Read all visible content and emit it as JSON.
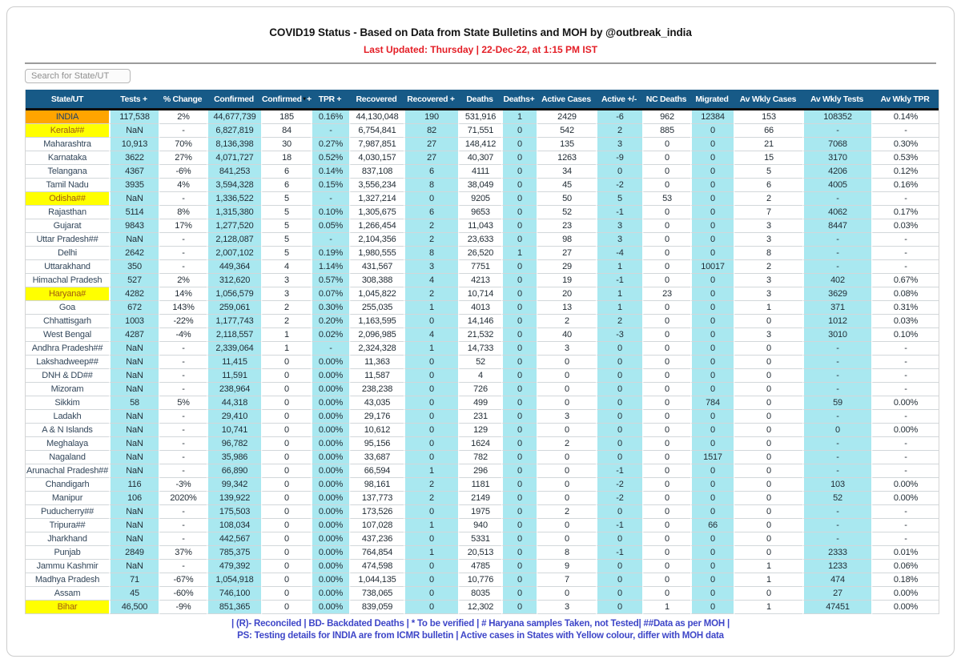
{
  "header": {
    "title": "COVID19 Status - Based on Data from State Bulletins and MOH by @outbreak_india",
    "last_updated": "Last Updated: Thursday | 22-Dec-22, at 1:15 PM IST"
  },
  "search": {
    "placeholder": "Search for State/UT"
  },
  "colors": {
    "header_bg": "#175a87",
    "cyan_column": "#a9e8f0",
    "india_row_orange": "#ffa500",
    "highlight_yellow": "#ffff00",
    "last_updated_red": "#e41e26",
    "footer_blue": "#3e46c8"
  },
  "table": {
    "columns": [
      {
        "label": "State/UT",
        "cyan": false
      },
      {
        "label": "Tests +",
        "cyan": true
      },
      {
        "label": "% Change",
        "cyan": false
      },
      {
        "label": "Confirmed",
        "cyan": true
      },
      {
        "label": "Confirmed",
        "plus": "+",
        "sorted": true,
        "cyan": false
      },
      {
        "label": "TPR +",
        "cyan": true
      },
      {
        "label": "Recovered",
        "cyan": false
      },
      {
        "label": "Recovered +",
        "cyan": true
      },
      {
        "label": "Deaths",
        "cyan": false
      },
      {
        "label": "Deaths+",
        "cyan": true
      },
      {
        "label": "Active Cases",
        "cyan": false
      },
      {
        "label": "Active +/-",
        "cyan": true
      },
      {
        "label": "NC Deaths",
        "cyan": false
      },
      {
        "label": "Migrated",
        "cyan": true
      },
      {
        "label": "Av Wkly Cases",
        "cyan": false
      },
      {
        "label": "Av Wkly Tests",
        "cyan": true
      },
      {
        "label": "Av Wkly TPR",
        "cyan": false
      }
    ],
    "rows": [
      {
        "state": "INDIA",
        "style": "orange",
        "cells": [
          "117,538",
          "2%",
          "44,677,739",
          "185",
          "0.16%",
          "44,130,048",
          "190",
          "531,916",
          "1",
          "2429",
          "-6",
          "962",
          "12384",
          "153",
          "108352",
          "0.14%"
        ]
      },
      {
        "state": "Kerala##",
        "style": "yellow",
        "cells": [
          "NaN",
          "-",
          "6,827,819",
          "84",
          "-",
          "6,754,841",
          "82",
          "71,551",
          "0",
          "542",
          "2",
          "885",
          "0",
          "66",
          "-",
          "-"
        ]
      },
      {
        "state": "Maharashtra",
        "style": null,
        "cells": [
          "10,913",
          "70%",
          "8,136,398",
          "30",
          "0.27%",
          "7,987,851",
          "27",
          "148,412",
          "0",
          "135",
          "3",
          "0",
          "0",
          "21",
          "7068",
          "0.30%"
        ]
      },
      {
        "state": "Karnataka",
        "style": null,
        "cells": [
          "3622",
          "27%",
          "4,071,727",
          "18",
          "0.52%",
          "4,030,157",
          "27",
          "40,307",
          "0",
          "1263",
          "-9",
          "0",
          "0",
          "15",
          "3170",
          "0.53%"
        ]
      },
      {
        "state": "Telangana",
        "style": null,
        "cells": [
          "4367",
          "-6%",
          "841,253",
          "6",
          "0.14%",
          "837,108",
          "6",
          "4111",
          "0",
          "34",
          "0",
          "0",
          "0",
          "5",
          "4206",
          "0.12%"
        ]
      },
      {
        "state": "Tamil Nadu",
        "style": null,
        "cells": [
          "3935",
          "4%",
          "3,594,328",
          "6",
          "0.15%",
          "3,556,234",
          "8",
          "38,049",
          "0",
          "45",
          "-2",
          "0",
          "0",
          "6",
          "4005",
          "0.16%"
        ]
      },
      {
        "state": "Odisha##",
        "style": "yellow",
        "cells": [
          "NaN",
          "-",
          "1,336,522",
          "5",
          "-",
          "1,327,214",
          "0",
          "9205",
          "0",
          "50",
          "5",
          "53",
          "0",
          "2",
          "-",
          "-"
        ]
      },
      {
        "state": "Rajasthan",
        "style": null,
        "cells": [
          "5114",
          "8%",
          "1,315,380",
          "5",
          "0.10%",
          "1,305,675",
          "6",
          "9653",
          "0",
          "52",
          "-1",
          "0",
          "0",
          "7",
          "4062",
          "0.17%"
        ]
      },
      {
        "state": "Gujarat",
        "style": null,
        "cells": [
          "9843",
          "17%",
          "1,277,520",
          "5",
          "0.05%",
          "1,266,454",
          "2",
          "11,043",
          "0",
          "23",
          "3",
          "0",
          "0",
          "3",
          "8447",
          "0.03%"
        ]
      },
      {
        "state": "Uttar Pradesh##",
        "style": null,
        "cells": [
          "NaN",
          "-",
          "2,128,087",
          "5",
          "-",
          "2,104,356",
          "2",
          "23,633",
          "0",
          "98",
          "3",
          "0",
          "0",
          "3",
          "-",
          "-"
        ]
      },
      {
        "state": "Delhi",
        "style": null,
        "cells": [
          "2642",
          "-",
          "2,007,102",
          "5",
          "0.19%",
          "1,980,555",
          "8",
          "26,520",
          "1",
          "27",
          "-4",
          "0",
          "0",
          "8",
          "-",
          "-"
        ]
      },
      {
        "state": "Uttarakhand",
        "style": null,
        "cells": [
          "350",
          "-",
          "449,364",
          "4",
          "1.14%",
          "431,567",
          "3",
          "7751",
          "0",
          "29",
          "1",
          "0",
          "10017",
          "2",
          "-",
          "-"
        ]
      },
      {
        "state": "Himachal Pradesh",
        "style": null,
        "cells": [
          "527",
          "2%",
          "312,620",
          "3",
          "0.57%",
          "308,388",
          "4",
          "4213",
          "0",
          "19",
          "-1",
          "0",
          "0",
          "3",
          "402",
          "0.67%"
        ]
      },
      {
        "state": "Haryana#",
        "style": "yellow",
        "cells": [
          "4282",
          "14%",
          "1,056,579",
          "3",
          "0.07%",
          "1,045,822",
          "2",
          "10,714",
          "0",
          "20",
          "1",
          "23",
          "0",
          "3",
          "3629",
          "0.08%"
        ]
      },
      {
        "state": "Goa",
        "style": null,
        "cells": [
          "672",
          "143%",
          "259,061",
          "2",
          "0.30%",
          "255,035",
          "1",
          "4013",
          "0",
          "13",
          "1",
          "0",
          "0",
          "1",
          "371",
          "0.31%"
        ]
      },
      {
        "state": "Chhattisgarh",
        "style": null,
        "cells": [
          "1003",
          "-22%",
          "1,177,743",
          "2",
          "0.20%",
          "1,163,595",
          "0",
          "14,146",
          "0",
          "2",
          "2",
          "0",
          "0",
          "0",
          "1012",
          "0.03%"
        ]
      },
      {
        "state": "West Bengal",
        "style": null,
        "cells": [
          "4287",
          "-4%",
          "2,118,557",
          "1",
          "0.02%",
          "2,096,985",
          "4",
          "21,532",
          "0",
          "40",
          "-3",
          "0",
          "0",
          "3",
          "3010",
          "0.10%"
        ]
      },
      {
        "state": "Andhra Pradesh##",
        "style": null,
        "cells": [
          "NaN",
          "-",
          "2,339,064",
          "1",
          "-",
          "2,324,328",
          "1",
          "14,733",
          "0",
          "3",
          "0",
          "0",
          "0",
          "0",
          "-",
          "-"
        ]
      },
      {
        "state": "Lakshadweep##",
        "style": null,
        "cells": [
          "NaN",
          "-",
          "11,415",
          "0",
          "0.00%",
          "11,363",
          "0",
          "52",
          "0",
          "0",
          "0",
          "0",
          "0",
          "0",
          "-",
          "-"
        ]
      },
      {
        "state": "DNH & DD##",
        "style": null,
        "cells": [
          "NaN",
          "-",
          "11,591",
          "0",
          "0.00%",
          "11,587",
          "0",
          "4",
          "0",
          "0",
          "0",
          "0",
          "0",
          "0",
          "-",
          "-"
        ]
      },
      {
        "state": "Mizoram",
        "style": null,
        "cells": [
          "NaN",
          "-",
          "238,964",
          "0",
          "0.00%",
          "238,238",
          "0",
          "726",
          "0",
          "0",
          "0",
          "0",
          "0",
          "0",
          "-",
          "-"
        ]
      },
      {
        "state": "Sikkim",
        "style": null,
        "cells": [
          "58",
          "5%",
          "44,318",
          "0",
          "0.00%",
          "43,035",
          "0",
          "499",
          "0",
          "0",
          "0",
          "0",
          "784",
          "0",
          "59",
          "0.00%"
        ]
      },
      {
        "state": "Ladakh",
        "style": null,
        "cells": [
          "NaN",
          "-",
          "29,410",
          "0",
          "0.00%",
          "29,176",
          "0",
          "231",
          "0",
          "3",
          "0",
          "0",
          "0",
          "0",
          "-",
          "-"
        ]
      },
      {
        "state": "A & N Islands",
        "style": null,
        "cells": [
          "NaN",
          "-",
          "10,741",
          "0",
          "0.00%",
          "10,612",
          "0",
          "129",
          "0",
          "0",
          "0",
          "0",
          "0",
          "0",
          "0",
          "0.00%"
        ]
      },
      {
        "state": "Meghalaya",
        "style": null,
        "cells": [
          "NaN",
          "-",
          "96,782",
          "0",
          "0.00%",
          "95,156",
          "0",
          "1624",
          "0",
          "2",
          "0",
          "0",
          "0",
          "0",
          "-",
          "-"
        ]
      },
      {
        "state": "Nagaland",
        "style": null,
        "cells": [
          "NaN",
          "-",
          "35,986",
          "0",
          "0.00%",
          "33,687",
          "0",
          "782",
          "0",
          "0",
          "0",
          "0",
          "1517",
          "0",
          "-",
          "-"
        ]
      },
      {
        "state": "Arunachal Pradesh##",
        "style": null,
        "cells": [
          "NaN",
          "-",
          "66,890",
          "0",
          "0.00%",
          "66,594",
          "1",
          "296",
          "0",
          "0",
          "-1",
          "0",
          "0",
          "0",
          "-",
          "-"
        ]
      },
      {
        "state": "Chandigarh",
        "style": null,
        "cells": [
          "116",
          "-3%",
          "99,342",
          "0",
          "0.00%",
          "98,161",
          "2",
          "1181",
          "0",
          "0",
          "-2",
          "0",
          "0",
          "0",
          "103",
          "0.00%"
        ]
      },
      {
        "state": "Manipur",
        "style": null,
        "cells": [
          "106",
          "2020%",
          "139,922",
          "0",
          "0.00%",
          "137,773",
          "2",
          "2149",
          "0",
          "0",
          "-2",
          "0",
          "0",
          "0",
          "52",
          "0.00%"
        ]
      },
      {
        "state": "Puducherry##",
        "style": null,
        "cells": [
          "NaN",
          "-",
          "175,503",
          "0",
          "0.00%",
          "173,526",
          "0",
          "1975",
          "0",
          "2",
          "0",
          "0",
          "0",
          "0",
          "-",
          "-"
        ]
      },
      {
        "state": "Tripura##",
        "style": null,
        "cells": [
          "NaN",
          "-",
          "108,034",
          "0",
          "0.00%",
          "107,028",
          "1",
          "940",
          "0",
          "0",
          "-1",
          "0",
          "66",
          "0",
          "-",
          "-"
        ]
      },
      {
        "state": "Jharkhand",
        "style": null,
        "cells": [
          "NaN",
          "-",
          "442,567",
          "0",
          "0.00%",
          "437,236",
          "0",
          "5331",
          "0",
          "0",
          "0",
          "0",
          "0",
          "0",
          "-",
          "-"
        ]
      },
      {
        "state": "Punjab",
        "style": null,
        "cells": [
          "2849",
          "37%",
          "785,375",
          "0",
          "0.00%",
          "764,854",
          "1",
          "20,513",
          "0",
          "8",
          "-1",
          "0",
          "0",
          "0",
          "2333",
          "0.01%"
        ]
      },
      {
        "state": "Jammu Kashmir",
        "style": null,
        "cells": [
          "NaN",
          "-",
          "479,392",
          "0",
          "0.00%",
          "474,598",
          "0",
          "4785",
          "0",
          "9",
          "0",
          "0",
          "0",
          "1",
          "1233",
          "0.06%"
        ]
      },
      {
        "state": "Madhya Pradesh",
        "style": null,
        "cells": [
          "71",
          "-67%",
          "1,054,918",
          "0",
          "0.00%",
          "1,044,135",
          "0",
          "10,776",
          "0",
          "7",
          "0",
          "0",
          "0",
          "1",
          "474",
          "0.18%"
        ]
      },
      {
        "state": "Assam",
        "style": null,
        "cells": [
          "45",
          "-60%",
          "746,100",
          "0",
          "0.00%",
          "738,065",
          "0",
          "8035",
          "0",
          "0",
          "0",
          "0",
          "0",
          "0",
          "27",
          "0.00%"
        ]
      },
      {
        "state": "Bihar",
        "style": "yellow",
        "cells": [
          "46,500",
          "-9%",
          "851,365",
          "0",
          "0.00%",
          "839,059",
          "0",
          "12,302",
          "0",
          "3",
          "0",
          "1",
          "0",
          "1",
          "47451",
          "0.00%"
        ]
      }
    ]
  },
  "footer": {
    "line1": "| (R)- Reconciled | BD- Backdated Deaths | * To be verified | # Haryana samples Taken, not Tested| ##Data as per MOH |",
    "line2": "PS: Testing details for INDIA are from ICMR bulletin | Active cases in States with Yellow colour, differ with MOH data"
  }
}
